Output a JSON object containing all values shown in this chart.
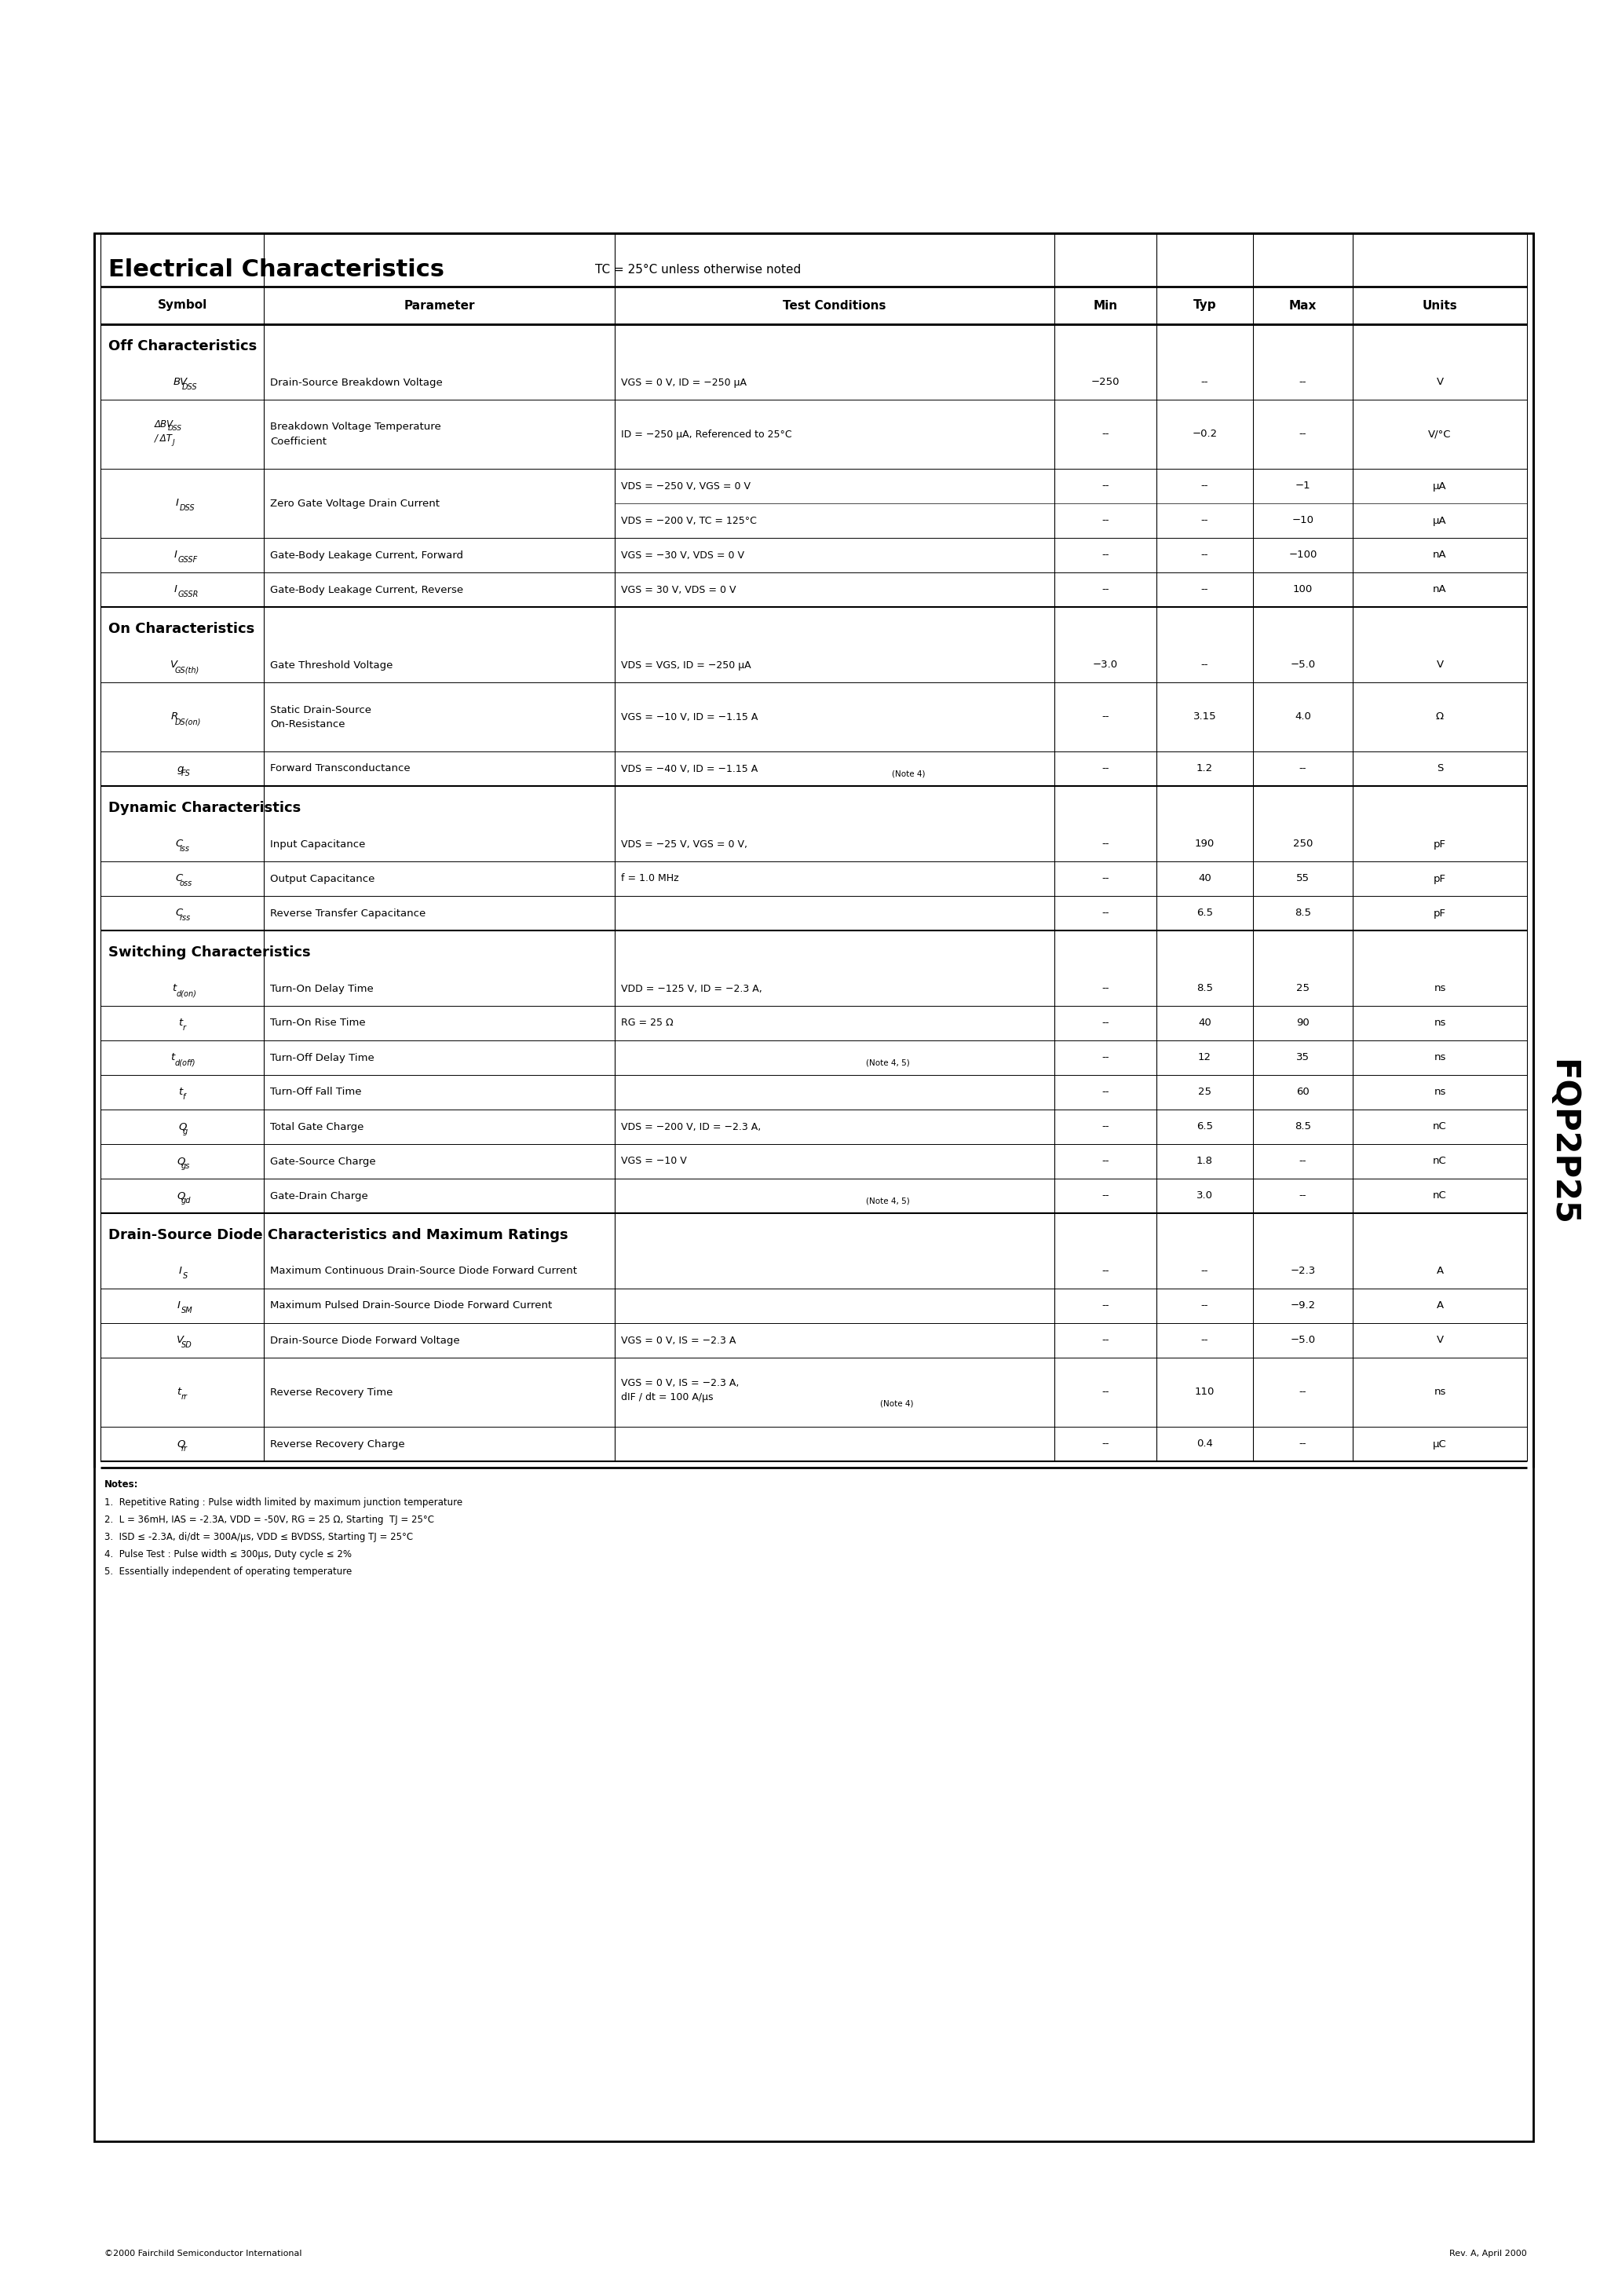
{
  "page_bg": "#ffffff",
  "title": "Electrical Characteristics",
  "title_note": "TC = 25°C unless otherwise noted",
  "product_name": "FQP2P25",
  "footer_left": "©2000 Fairchild Semiconductor International",
  "footer_right": "Rev. A, April 2000"
}
